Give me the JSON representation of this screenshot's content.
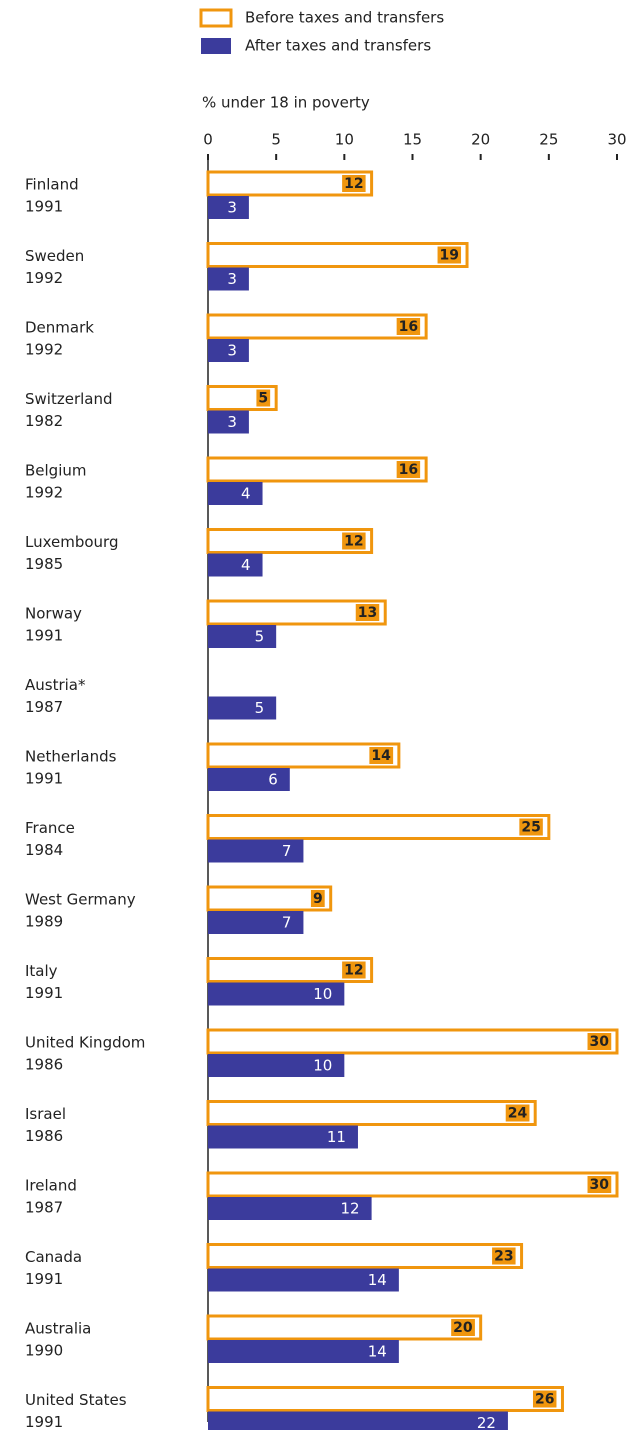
{
  "chart_data": {
    "type": "hbar",
    "xlabel": "% under 18 in poverty",
    "categories": [
      [
        "Finland",
        "1991"
      ],
      [
        "Sweden",
        "1992"
      ],
      [
        "Denmark",
        "1992"
      ],
      [
        "Switzerland",
        "1982"
      ],
      [
        "Belgium",
        "1992"
      ],
      [
        "Luxembourg",
        "1985"
      ],
      [
        "Norway",
        "1991"
      ],
      [
        "Austria*",
        "1987"
      ],
      [
        "Netherlands",
        "1991"
      ],
      [
        "France",
        "1984"
      ],
      [
        "West Germany",
        "1989"
      ],
      [
        "Italy",
        "1991"
      ],
      [
        "United Kingdom",
        "1986"
      ],
      [
        "Israel",
        "1986"
      ],
      [
        "Ireland",
        "1987"
      ],
      [
        "Canada",
        "1991"
      ],
      [
        "Australia",
        "1990"
      ],
      [
        "United States",
        "1991"
      ]
    ],
    "series": [
      {
        "name": "Before taxes and transfers",
        "color": "#f0960e",
        "values": [
          12,
          19,
          16,
          5,
          16,
          12,
          13,
          null,
          14,
          25,
          9,
          12,
          30,
          24,
          30,
          23,
          20,
          26
        ]
      },
      {
        "name": "After taxes and transfers",
        "color": "#3b3b9c",
        "values": [
          3,
          3,
          3,
          3,
          4,
          4,
          5,
          5,
          6,
          7,
          7,
          10,
          10,
          11,
          12,
          14,
          14,
          22
        ]
      }
    ],
    "xlim": [
      0,
      30
    ],
    "xticks": [
      0,
      5,
      10,
      15,
      20,
      25,
      30
    ]
  }
}
